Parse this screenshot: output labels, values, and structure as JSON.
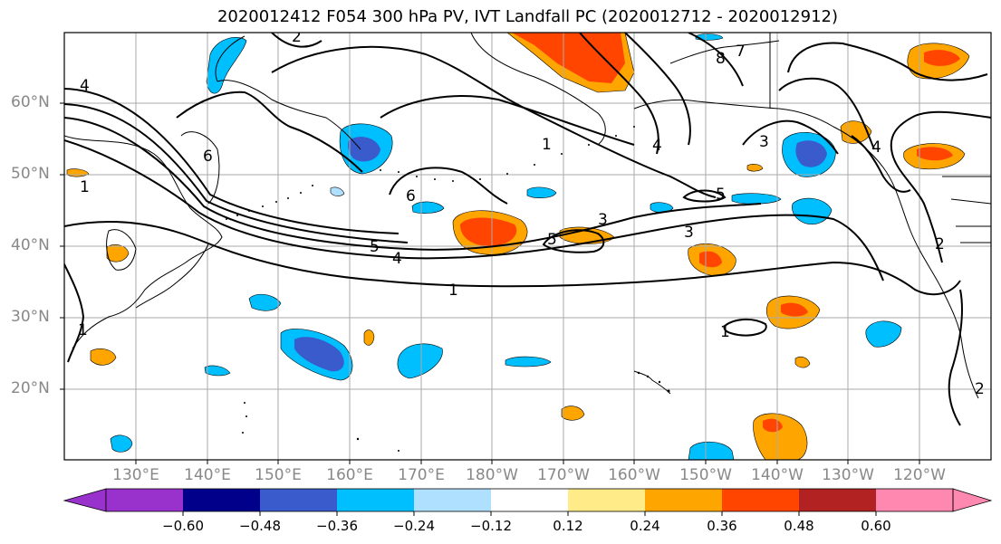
{
  "title": "2020012412 F054 300 hPa PV, IVT Landfall PC (2020012712 - 2020012912)",
  "map": {
    "lat_labels": [
      "60°N",
      "50°N",
      "40°N",
      "30°N",
      "20°N"
    ],
    "lon_labels": [
      "130°E",
      "140°E",
      "150°E",
      "160°E",
      "170°E",
      "180°W",
      "170°W",
      "160°W",
      "150°W",
      "140°W",
      "130°W",
      "120°W"
    ],
    "contour_labels": [
      "1",
      "1",
      "1",
      "1",
      "1",
      "2",
      "2",
      "2",
      "3",
      "3",
      "3",
      "4",
      "4",
      "4",
      "4",
      "5",
      "5",
      "5",
      "6",
      "6",
      "7",
      "8"
    ]
  },
  "colorbar": {
    "tick_labels": [
      "−0.60",
      "−0.48",
      "−0.36",
      "−0.24",
      "−0.12",
      "0.12",
      "0.24",
      "0.36",
      "0.48",
      "0.60"
    ],
    "colors": [
      "#9932CC",
      "#00008B",
      "#3A5BCC",
      "#00BFFF",
      "#B0E0FF",
      "#FFFFFF",
      "#FFEB88",
      "#FFA500",
      "#FF4500",
      "#B22222",
      "#FF88B0"
    ]
  }
}
